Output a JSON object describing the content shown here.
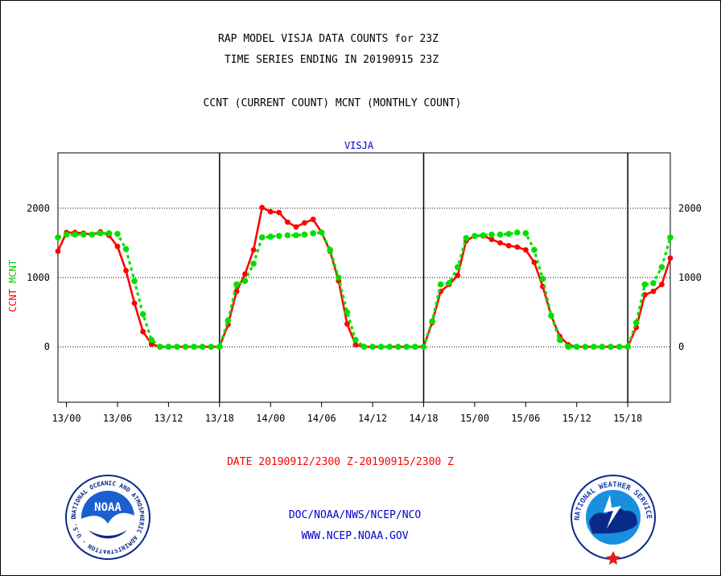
{
  "header": {
    "title_line1": "RAP MODEL VISJA DATA COUNTS for 23Z",
    "title_line2": "TIME SERIES ENDING IN 20190915 23Z",
    "subtitle": "CCNT (CURRENT COUNT) MCNT (MONTHLY COUNT)"
  },
  "footer": {
    "date_range": "DATE 20190912/2300 Z-20190915/2300 Z",
    "org_line": "DOC/NOAA/NWS/NCEP/NCO",
    "url": "WWW.NCEP.NOAA.GOV"
  },
  "logos": {
    "noaa": {
      "text": "NOAA",
      "ring_text": "NATIONAL OCEANIC AND ATMOSPHERIC ADMINISTRATION · U.S. DEPARTMENT OF COMMERCE",
      "icon": "noaa-logo"
    },
    "nws": {
      "ring_text": "NATIONAL WEATHER SERVICE",
      "icon": "nws-logo"
    }
  },
  "colors": {
    "ccnt": "#ff0000",
    "mcnt": "#00e000",
    "axis": "#000000",
    "text": "#000000",
    "blue_text": "#0000cc",
    "red_text": "#ff0000"
  },
  "chart_data": {
    "type": "line",
    "title": "VISJA",
    "ylabel_ccnt": "CCNT",
    "ylabel_mcnt": "MCNT",
    "x_unit": "hours after 2019-09-13 00Z",
    "xlim": [
      -1,
      71
    ],
    "ylim": [
      -800,
      2800
    ],
    "yticks": [
      0,
      1000,
      2000
    ],
    "ytick_labels": [
      "0",
      "1000",
      "2000"
    ],
    "grid": true,
    "day_boundaries": [
      18,
      42,
      66
    ],
    "xticks": [
      0,
      6,
      12,
      18,
      24,
      30,
      36,
      42,
      48,
      54,
      60,
      66
    ],
    "xtick_labels": [
      "13/00",
      "13/06",
      "13/12",
      "13/18",
      "14/00",
      "14/06",
      "14/12",
      "14/18",
      "15/00",
      "15/06",
      "15/12",
      "15/18"
    ],
    "series": [
      {
        "name": "CCNT",
        "x": [
          -1,
          0,
          1,
          2,
          3,
          4,
          5,
          6,
          7,
          8,
          9,
          10,
          11,
          12,
          13,
          14,
          15,
          16,
          17,
          18,
          19,
          20,
          21,
          22,
          23,
          24,
          25,
          26,
          27,
          28,
          29,
          30,
          31,
          32,
          33,
          34,
          35,
          36,
          37,
          38,
          39,
          40,
          41,
          42,
          43,
          44,
          45,
          46,
          47,
          48,
          49,
          50,
          51,
          52,
          53,
          54,
          55,
          56,
          57,
          58,
          59,
          60,
          61,
          62,
          63,
          64,
          65,
          66,
          67,
          68,
          69,
          70,
          71
        ],
        "values": [
          1380,
          1650,
          1650,
          1640,
          1620,
          1660,
          1610,
          1450,
          1100,
          630,
          220,
          40,
          0,
          0,
          0,
          0,
          0,
          0,
          0,
          0,
          320,
          800,
          1050,
          1400,
          2010,
          1950,
          1940,
          1800,
          1730,
          1790,
          1840,
          1650,
          1380,
          950,
          330,
          30,
          0,
          0,
          0,
          0,
          0,
          0,
          0,
          0,
          350,
          800,
          900,
          1030,
          1530,
          1600,
          1600,
          1550,
          1500,
          1460,
          1440,
          1400,
          1220,
          870,
          450,
          150,
          30,
          0,
          0,
          0,
          0,
          0,
          0,
          0,
          280,
          750,
          800,
          900,
          1280
        ]
      },
      {
        "name": "MCNT",
        "x": [
          -1,
          0,
          1,
          2,
          3,
          4,
          5,
          6,
          7,
          8,
          9,
          10,
          11,
          12,
          13,
          14,
          15,
          16,
          17,
          18,
          19,
          20,
          21,
          22,
          23,
          24,
          25,
          26,
          27,
          28,
          29,
          30,
          31,
          32,
          33,
          34,
          35,
          36,
          37,
          38,
          39,
          40,
          41,
          42,
          43,
          44,
          45,
          46,
          47,
          48,
          49,
          50,
          51,
          52,
          53,
          54,
          55,
          56,
          57,
          58,
          59,
          60,
          61,
          62,
          63,
          64,
          65,
          66,
          67,
          68,
          69,
          70,
          71
        ],
        "values": [
          1580,
          1620,
          1620,
          1620,
          1620,
          1640,
          1640,
          1630,
          1410,
          950,
          470,
          100,
          0,
          0,
          0,
          0,
          0,
          0,
          0,
          0,
          380,
          900,
          950,
          1200,
          1580,
          1590,
          1600,
          1610,
          1610,
          1620,
          1640,
          1650,
          1400,
          1000,
          500,
          100,
          0,
          0,
          0,
          0,
          0,
          0,
          0,
          0,
          370,
          900,
          920,
          1150,
          1570,
          1600,
          1610,
          1620,
          1620,
          1630,
          1650,
          1640,
          1400,
          980,
          450,
          100,
          0,
          0,
          0,
          0,
          0,
          0,
          0,
          0,
          350,
          900,
          920,
          1150,
          1580
        ]
      }
    ]
  }
}
